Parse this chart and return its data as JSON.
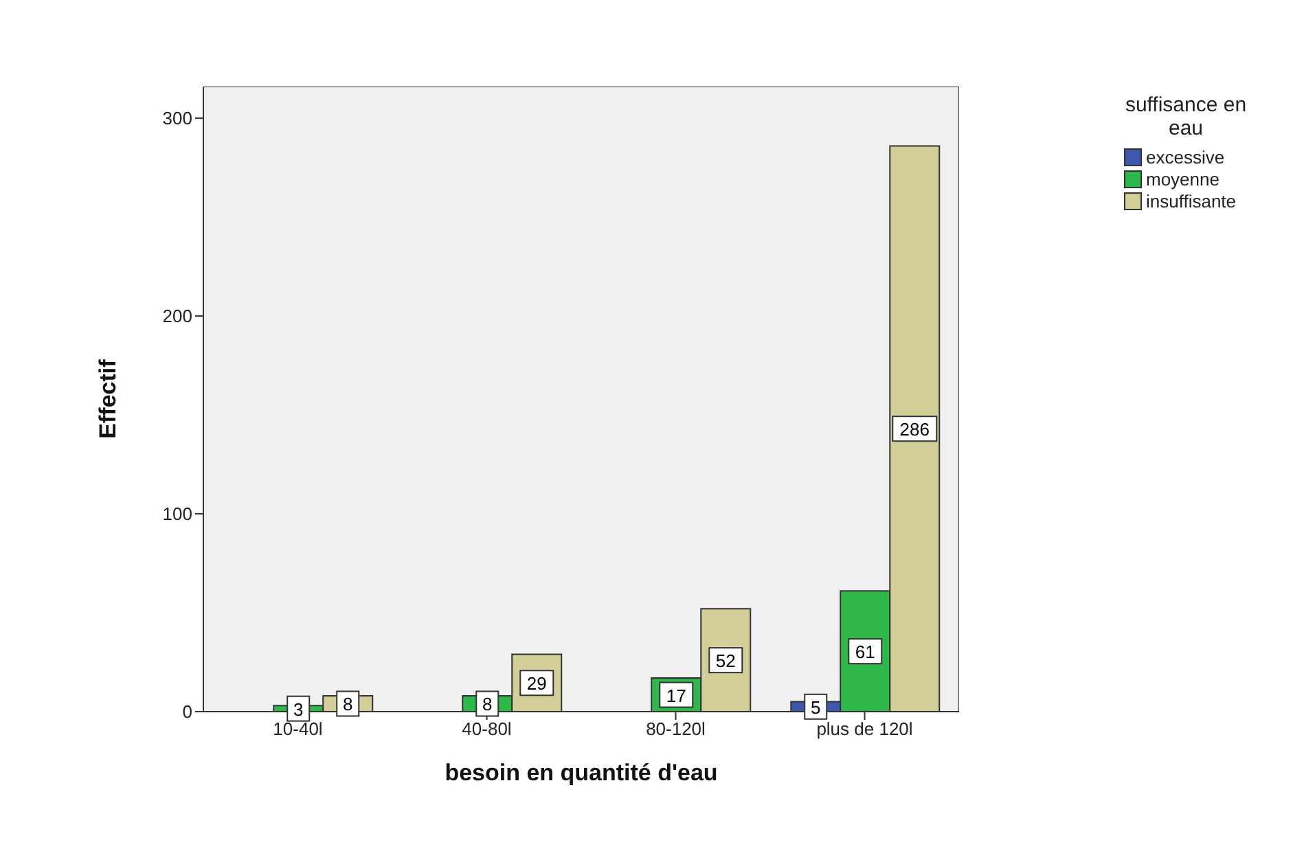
{
  "chart_data": {
    "type": "bar",
    "xlabel": "besoin en quantité d'eau",
    "ylabel": "Effectif",
    "legend_title": "suffisance en eau",
    "categories": [
      "10-40l",
      "40-80l",
      "80-120l",
      "plus de 120l"
    ],
    "series": [
      {
        "name": "excessive",
        "color": "#3e58ac",
        "values": [
          null,
          null,
          null,
          5
        ]
      },
      {
        "name": "moyenne",
        "color": "#2fb84a",
        "values": [
          3,
          8,
          17,
          61
        ]
      },
      {
        "name": "insuffisante",
        "color": "#d3ce97",
        "values": [
          8,
          29,
          52,
          286
        ]
      }
    ],
    "ylim": [
      0,
      316
    ],
    "yticks": [
      0,
      100,
      200,
      300
    ],
    "grid": false,
    "legend": "top right",
    "data_labels": true
  }
}
